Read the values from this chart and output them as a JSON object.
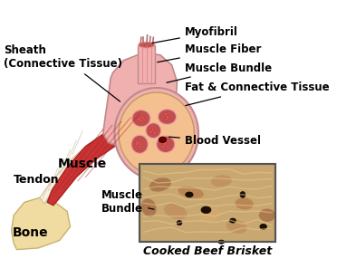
{
  "background_color": "#ffffff",
  "labels": {
    "sheath": "Sheath\n(Connective Tissue)",
    "myofibril": "Myofibril",
    "muscle_fiber": "Muscle Fiber",
    "muscle_bundle": "Muscle Bundle",
    "fat_connective": "Fat & Connective Tissue",
    "blood_vessel": "Blood Vessel",
    "muscle": "Muscle",
    "tendon": "Tendon",
    "bone": "Bone",
    "muscle_bundle2": "Muscle\nBundle",
    "caption": "Cooked Beef Brisket"
  },
  "colors": {
    "muscle_red": "#c93333",
    "muscle_dark": "#aa2222",
    "tendon_color": "#f5e6c8",
    "bone_color": "#f0dca0",
    "bone_edge": "#c8b070",
    "sheath_pink": "#f0b0b0",
    "sheath_edge": "#c08888",
    "bundle_fill": "#c05050",
    "bundle_edge": "#f0a0a0",
    "connective_tissue": "#f5c090",
    "connective_edge": "#c09860",
    "photo_bg": "#c8a070",
    "text_color": "#000000",
    "arrow_color": "#000000",
    "label_font_size": 8.5,
    "muscle_label_font_size": 10,
    "caption_font_size": 9
  }
}
